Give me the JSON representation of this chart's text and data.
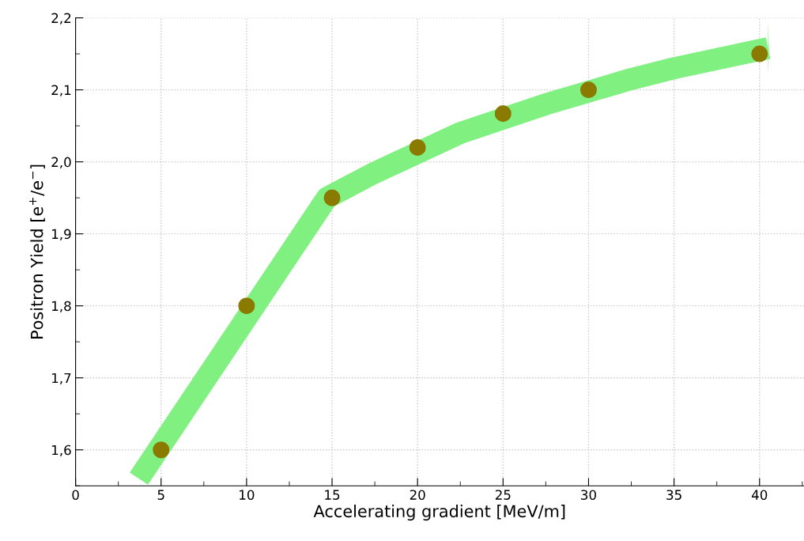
{
  "chart_data": {
    "type": "scatter",
    "xlabel": "Accelerating gradient [MeV/m]",
    "ylabel": "Positron Yield [e$^{+}$/e$^{−}$]",
    "xlim": [
      0,
      42.6
    ],
    "ylim": [
      1.55,
      2.2
    ],
    "xticks": [
      0,
      5,
      10,
      15,
      20,
      25,
      30,
      35,
      40
    ],
    "yticks": [
      {
        "value": 1.6,
        "label": "1,6"
      },
      {
        "value": 1.7,
        "label": "1,7"
      },
      {
        "value": 1.8,
        "label": "1,8"
      },
      {
        "value": 1.9,
        "label": "1,9"
      },
      {
        "value": 2.0,
        "label": "2,0"
      },
      {
        "value": 2.1,
        "label": "2,1"
      },
      {
        "value": 2.2,
        "label": "2,2"
      }
    ],
    "grid": true,
    "marker": "circle",
    "series": [
      {
        "type": "line",
        "color": "#80f080",
        "x": [
          3.7,
          14.7,
          17.5,
          22.5,
          27.5,
          32.5,
          35,
          40.5
        ],
        "values": [
          1.56,
          1.95,
          1.985,
          2.04,
          2.08,
          2.115,
          2.13,
          2.158
        ],
        "marker": "none"
      },
      {
        "color": "#8a7a00",
        "x": [
          5,
          10,
          15,
          20,
          25,
          30,
          40
        ],
        "values": [
          1.6,
          1.8,
          1.95,
          2.02,
          2.067,
          2.1,
          2.15
        ]
      }
    ]
  }
}
